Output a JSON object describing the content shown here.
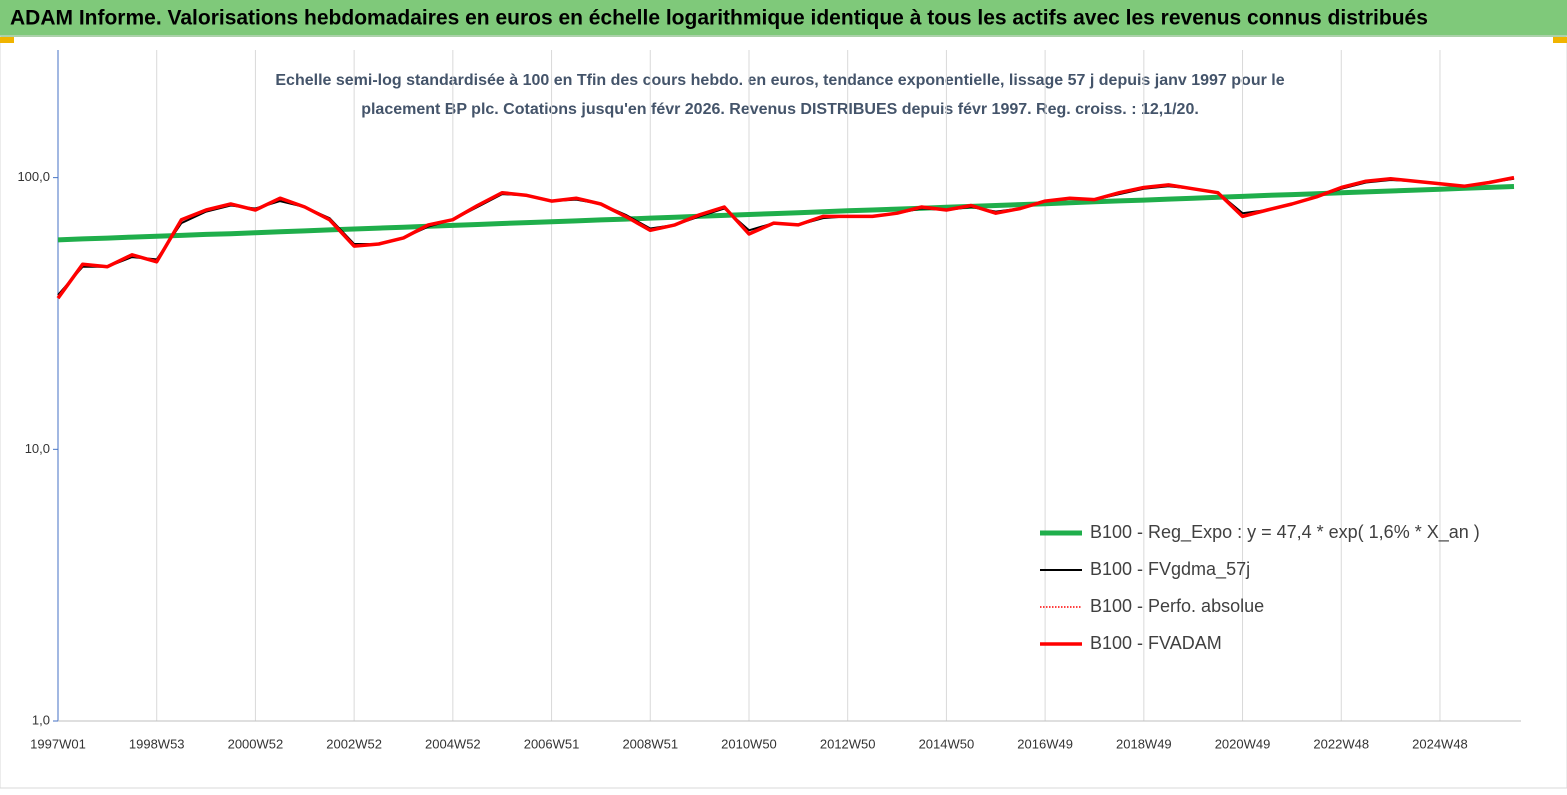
{
  "chart_data": {
    "type": "line",
    "title": "ADAM Informe. Valorisations hebdomadaires en euros en échelle logarithmique identique à tous les actifs avec les revenus connus distribués",
    "subtitle": [
      "Echelle semi-log standardisée à 100 en Tfin des cours hebdo. en euros, tendance exponentielle, lissage 57 j depuis janv 1997 pour le",
      "placement BP plc. Cotations jusqu'en févr 2026. Revenus DISTRIBUES depuis févr 1997. Reg. croiss. : 12,1/20."
    ],
    "categories": [
      "1997W01",
      null,
      null,
      null,
      "1998W53",
      null,
      null,
      null,
      "2000W52",
      null,
      null,
      null,
      "2002W52",
      null,
      null,
      null,
      "2004W52",
      null,
      null,
      null,
      "2006W51",
      null,
      null,
      null,
      "2008W51",
      null,
      null,
      null,
      "2010W50",
      null,
      null,
      null,
      "2012W50",
      null,
      null,
      null,
      "2014W50",
      null,
      null,
      null,
      "2016W49",
      null,
      null,
      null,
      "2018W49",
      null,
      null,
      null,
      "2020W49",
      null,
      null,
      null,
      "2022W48",
      null,
      null,
      null,
      "2024W48",
      null,
      null,
      null
    ],
    "series": [
      {
        "name": "B100 - Reg_Expo : y = 47,4 *  exp( 1,6% *   X_an )",
        "color": "#1fae4b",
        "values": [
          59.0,
          59.5,
          59.9,
          60.4,
          60.8,
          61.3,
          61.8,
          62.2,
          62.7,
          63.2,
          63.7,
          64.2,
          64.7,
          65.2,
          65.7,
          66.2,
          66.7,
          67.2,
          67.8,
          68.3,
          68.8,
          69.3,
          69.9,
          70.4,
          71.0,
          71.5,
          72.1,
          72.6,
          73.2,
          73.7,
          74.3,
          74.9,
          75.5,
          76.0,
          76.6,
          77.2,
          77.8,
          78.4,
          79.0,
          79.6,
          80.2,
          80.8,
          81.5,
          82.1,
          82.7,
          83.4,
          84.0,
          84.7,
          85.3,
          86.0,
          86.6,
          87.3,
          88.0,
          88.6,
          89.3,
          90.0,
          90.7,
          91.4,
          92.1,
          92.8
        ]
      },
      {
        "name": "B100 - FVgdma_57j",
        "color": "#000000",
        "values": [
          37,
          47,
          47,
          51,
          50,
          68,
          75,
          79,
          77,
          82,
          78,
          71,
          57,
          57,
          60,
          66,
          70,
          78,
          87,
          86,
          82,
          83,
          80,
          73,
          65,
          67,
          72,
          77,
          64,
          68,
          67,
          71,
          72,
          72,
          74,
          77,
          76,
          78,
          75,
          77,
          82,
          84,
          83,
          87,
          91,
          93,
          91,
          88,
          74,
          76,
          80,
          85,
          91,
          96,
          98,
          97,
          95,
          93,
          96,
          99
        ]
      },
      {
        "name": "B100 - Perfo. absolue",
        "color": "#ff0000",
        "dash": "dotted",
        "values": [
          36,
          48,
          47,
          52,
          49,
          70,
          76,
          80,
          76,
          84,
          78,
          70,
          56,
          57,
          60,
          67,
          70,
          79,
          88,
          86,
          82,
          84,
          80,
          72,
          64,
          67,
          73,
          78,
          62,
          68,
          67,
          72,
          72,
          72,
          74,
          78,
          76,
          79,
          74,
          77,
          82,
          84,
          83,
          88,
          92,
          94,
          91,
          88,
          72,
          76,
          80,
          85,
          92,
          97,
          99,
          97,
          95,
          93,
          96,
          100
        ]
      },
      {
        "name": "B100 - FVADAM",
        "color": "#ff0000",
        "values": [
          36,
          48,
          47,
          52,
          49,
          70,
          76,
          80,
          76,
          84,
          78,
          70,
          56,
          57,
          60,
          67,
          70,
          79,
          88,
          86,
          82,
          84,
          80,
          72,
          64,
          67,
          73,
          78,
          62,
          68,
          67,
          72,
          72,
          72,
          74,
          78,
          76,
          79,
          74,
          77,
          82,
          84,
          83,
          88,
          92,
          94,
          91,
          88,
          72,
          76,
          80,
          85,
          92,
          97,
          99,
          97,
          95,
          93,
          96,
          100
        ]
      }
    ],
    "log_y": true,
    "ylim": [
      1,
      295
    ],
    "yticks": [
      {
        "value": 1,
        "label": "1,0"
      },
      {
        "value": 10,
        "label": "10,0"
      },
      {
        "value": 100,
        "label": "100,0"
      }
    ],
    "grid": "x",
    "legend": "lower right"
  }
}
